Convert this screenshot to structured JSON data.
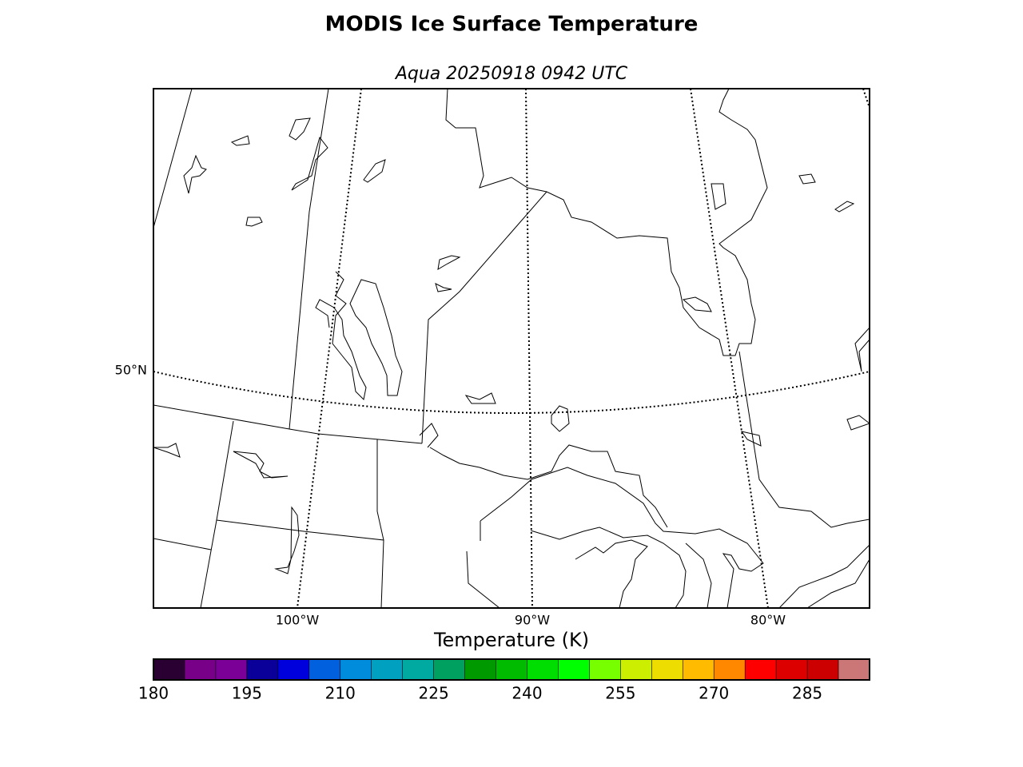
{
  "title": "MODIS Ice Surface Temperature",
  "subtitle": "Aqua 20250918 0942 UTC",
  "map": {
    "parallel_labels": [
      "50°N"
    ],
    "meridian_labels": [
      "100°W",
      "90°W",
      "80°W"
    ]
  },
  "colorbar": {
    "label": "Temperature (K)",
    "lim": [
      180,
      295
    ],
    "ticks": [
      180,
      195,
      210,
      225,
      240,
      255,
      270,
      285
    ],
    "colors": [
      "#2a0033",
      "#780088",
      "#7a0098",
      "#0a0099",
      "#0000dd",
      "#0060dd",
      "#008cdd",
      "#00a0c0",
      "#00aaa0",
      "#00a060",
      "#009900",
      "#00bb00",
      "#00dd00",
      "#00ff00",
      "#77ff00",
      "#ccee00",
      "#eedd00",
      "#ffbb00",
      "#ff8800",
      "#ff0000",
      "#dd0000",
      "#cc0000",
      "#cc7777"
    ]
  }
}
